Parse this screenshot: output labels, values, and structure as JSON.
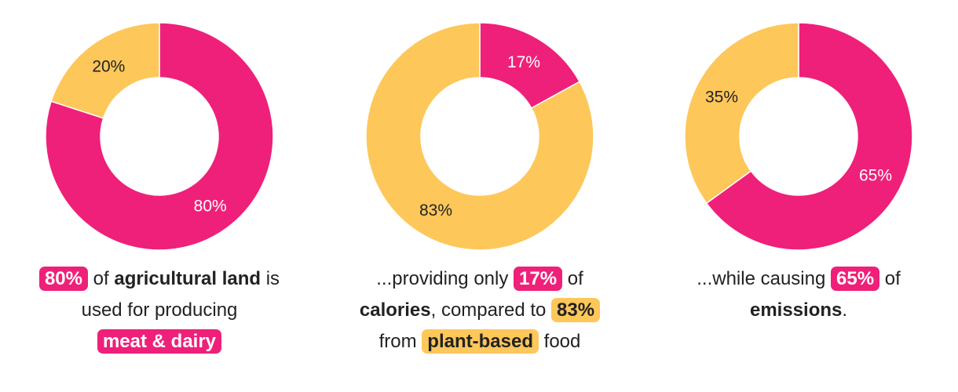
{
  "colors": {
    "pink": "#ef2079",
    "yellow": "#fdc75a",
    "text": "#222222"
  },
  "chart_data": [
    {
      "type": "pie",
      "slices": [
        {
          "value": 80,
          "label": "80%",
          "color": "#ef2079"
        },
        {
          "value": 20,
          "label": "20%",
          "color": "#fdc75a"
        }
      ],
      "caption": {
        "hl1": "80%",
        "t1": " of ",
        "b1": "agricultural land",
        "t2": " is",
        "t3": "used for producing",
        "hl2": "meat & dairy"
      }
    },
    {
      "type": "pie",
      "slices": [
        {
          "value": 17,
          "label": "17%",
          "color": "#ef2079"
        },
        {
          "value": 83,
          "label": "83%",
          "color": "#fdc75a"
        }
      ],
      "caption": {
        "t1": "...providing only ",
        "hl1": "17%",
        "t2": " of",
        "b1": "calories",
        "t3": ", compared to ",
        "hl2": "83%",
        "t4": "from ",
        "hl3": "plant-based",
        "t5": " food"
      }
    },
    {
      "type": "pie",
      "slices": [
        {
          "value": 65,
          "label": "65%",
          "color": "#ef2079"
        },
        {
          "value": 35,
          "label": "35%",
          "color": "#fdc75a"
        }
      ],
      "caption": {
        "t1": "...while causing ",
        "hl1": "65%",
        "t2": " of",
        "b1": "emissions",
        "t3": "."
      }
    }
  ]
}
